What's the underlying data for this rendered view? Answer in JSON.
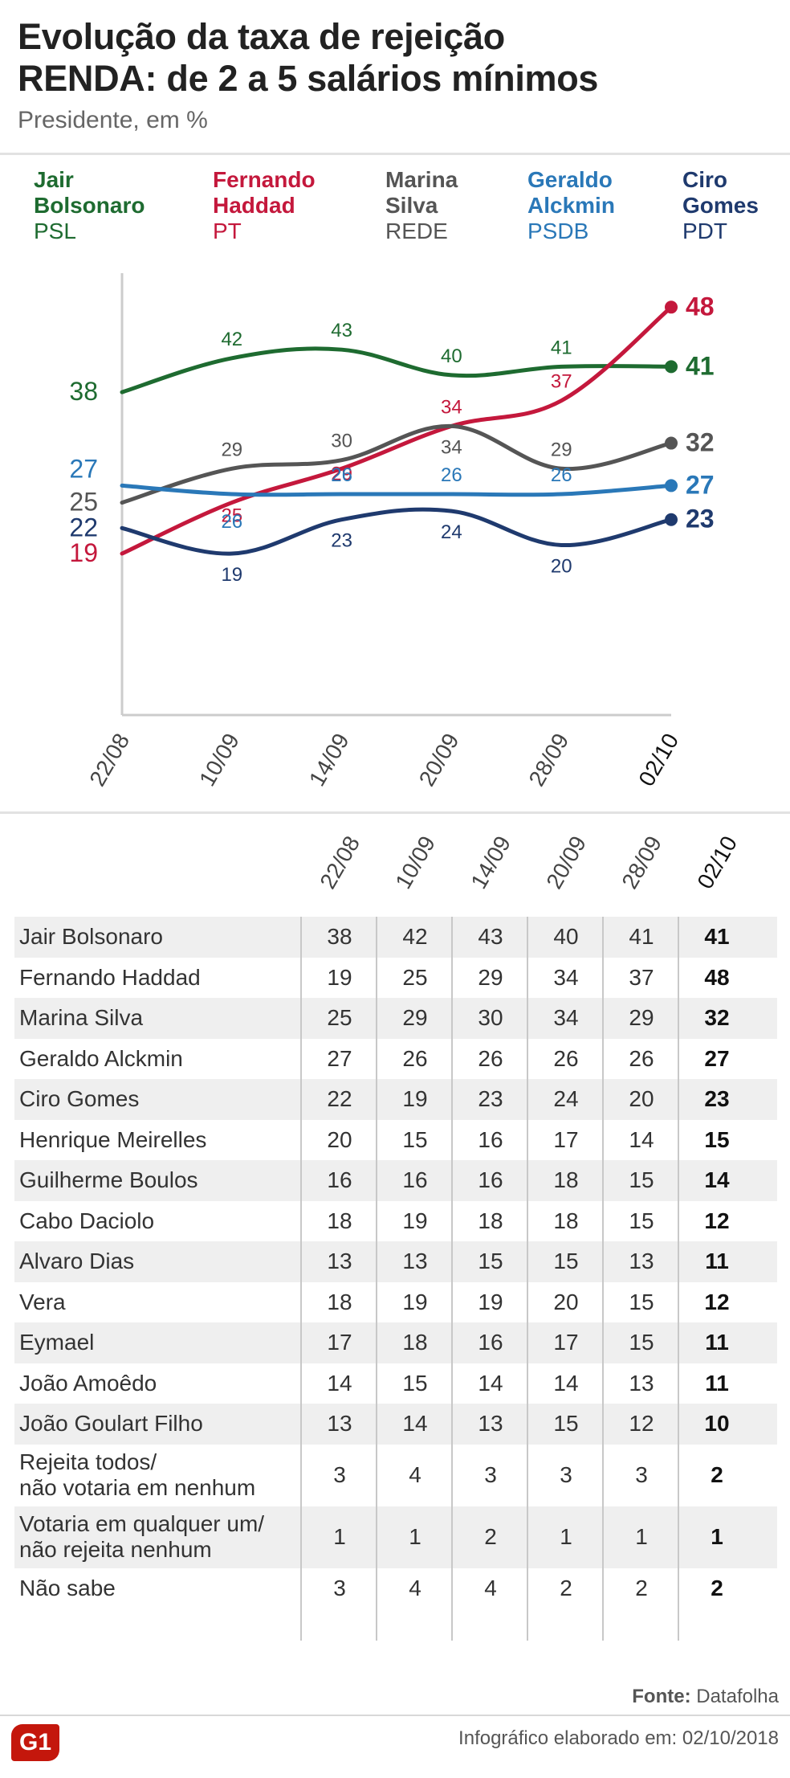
{
  "header": {
    "title_line1": "Evolução da taxa de rejeição",
    "title_line2": "RENDA: de 2 a 5 salários mínimos",
    "subtitle": "Presidente, em %"
  },
  "legend": [
    {
      "name": "Jair Bolsonaro",
      "name_l1": "Jair",
      "name_l2": "Bolsonaro",
      "party": "PSL",
      "color": "#1e6b30"
    },
    {
      "name": "Fernando Haddad",
      "name_l1": "Fernando",
      "name_l2": "Haddad",
      "party": "PT",
      "color": "#c4183c"
    },
    {
      "name": "Marina Silva",
      "name_l1": "Marina",
      "name_l2": "Silva",
      "party": "REDE",
      "color": "#555555"
    },
    {
      "name": "Geraldo Alckmin",
      "name_l1": "Geraldo",
      "name_l2": "Alckmin",
      "party": "PSDB",
      "color": "#2a78b8"
    },
    {
      "name": "Ciro Gomes",
      "name_l1": "Ciro",
      "name_l2": "Gomes",
      "party": "PDT",
      "color": "#1f3a6e"
    }
  ],
  "chart_data": {
    "type": "line",
    "x": [
      "22/08",
      "10/09",
      "14/09",
      "20/09",
      "28/09",
      "02/10"
    ],
    "ylim": [
      0,
      52
    ],
    "grid": false,
    "series": [
      {
        "name": "Jair Bolsonaro",
        "color": "#1e6b30",
        "values": [
          38,
          42,
          43,
          40,
          41,
          41
        ]
      },
      {
        "name": "Fernando Haddad",
        "color": "#c4183c",
        "values": [
          19,
          25,
          29,
          34,
          37,
          48
        ]
      },
      {
        "name": "Marina Silva",
        "color": "#555555",
        "values": [
          25,
          29,
          30,
          34,
          29,
          32
        ]
      },
      {
        "name": "Geraldo Alckmin",
        "color": "#2a78b8",
        "values": [
          27,
          26,
          26,
          26,
          26,
          27
        ]
      },
      {
        "name": "Ciro Gomes",
        "color": "#1f3a6e",
        "values": [
          22,
          19,
          23,
          24,
          20,
          23
        ]
      }
    ]
  },
  "table": {
    "columns": [
      "22/08",
      "10/09",
      "14/09",
      "20/09",
      "28/09",
      "02/10"
    ],
    "rows": [
      {
        "label": "Jair Bolsonaro",
        "values": [
          "38",
          "42",
          "43",
          "40",
          "41",
          "41"
        ]
      },
      {
        "label": "Fernando Haddad",
        "values": [
          "19",
          "25",
          "29",
          "34",
          "37",
          "48"
        ]
      },
      {
        "label": "Marina Silva",
        "values": [
          "25",
          "29",
          "30",
          "34",
          "29",
          "32"
        ]
      },
      {
        "label": "Geraldo Alckmin",
        "values": [
          "27",
          "26",
          "26",
          "26",
          "26",
          "27"
        ]
      },
      {
        "label": "Ciro Gomes",
        "values": [
          "22",
          "19",
          "23",
          "24",
          "20",
          "23"
        ]
      },
      {
        "label": "Henrique Meirelles",
        "values": [
          "20",
          "15",
          "16",
          "17",
          "14",
          "15"
        ]
      },
      {
        "label": "Guilherme Boulos",
        "values": [
          "16",
          "16",
          "16",
          "18",
          "15",
          "14"
        ]
      },
      {
        "label": "Cabo Daciolo",
        "values": [
          "18",
          "19",
          "18",
          "18",
          "15",
          "12"
        ]
      },
      {
        "label": "Alvaro Dias",
        "values": [
          "13",
          "13",
          "15",
          "15",
          "13",
          "11"
        ]
      },
      {
        "label": "Vera",
        "values": [
          "18",
          "19",
          "19",
          "20",
          "15",
          "12"
        ]
      },
      {
        "label": "Eymael",
        "values": [
          "17",
          "18",
          "16",
          "17",
          "15",
          "11"
        ]
      },
      {
        "label": "João Amoêdo",
        "values": [
          "14",
          "15",
          "14",
          "14",
          "13",
          "11"
        ]
      },
      {
        "label": "João Goulart Filho",
        "values": [
          "13",
          "14",
          "13",
          "15",
          "12",
          "10"
        ]
      },
      {
        "label": "Rejeita todos/\nnão votaria em nenhum",
        "l1": "Rejeita todos/",
        "l2": "não votaria em nenhum",
        "values": [
          "3",
          "4",
          "3",
          "3",
          "3",
          "2"
        ]
      },
      {
        "label": "Votaria em qualquer um/\nnão rejeita nenhum",
        "l1": "Votaria em qualquer um/",
        "l2": "não rejeita nenhum",
        "values": [
          "1",
          "1",
          "2",
          "1",
          "1",
          "1"
        ]
      },
      {
        "label": "Não sabe",
        "values": [
          "3",
          "4",
          "4",
          "2",
          "2",
          "2"
        ]
      }
    ]
  },
  "footer": {
    "source_label": "Fonte:",
    "source_value": "Datafolha",
    "credit": "Infográfico elaborado em: 02/10/2018",
    "logo": "G1"
  }
}
